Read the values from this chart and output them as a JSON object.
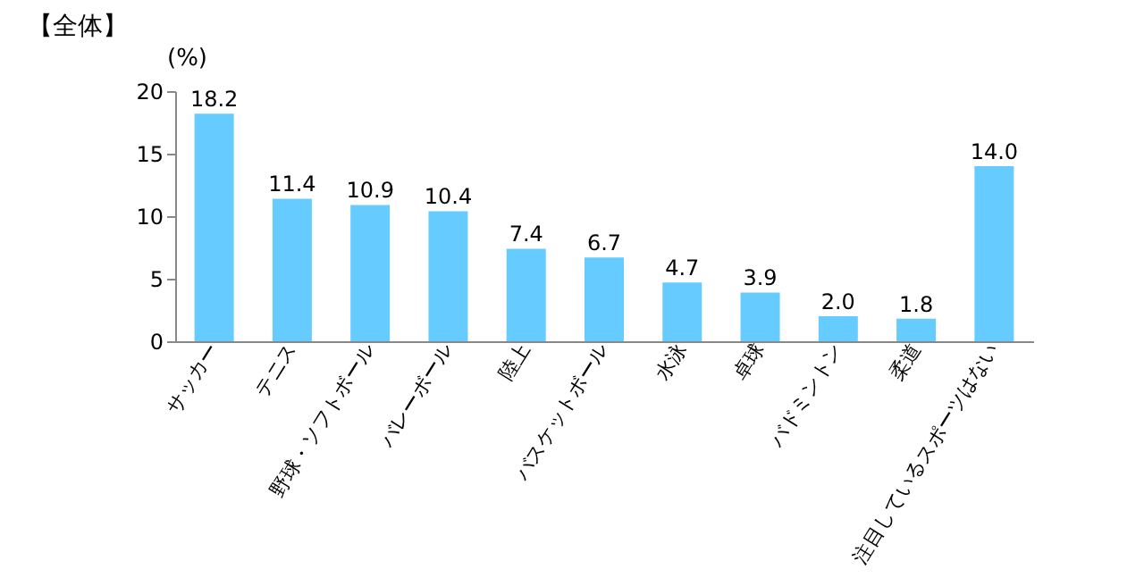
{
  "chart_data": {
    "type": "bar",
    "title": "【全体】",
    "ylabel": "(%)",
    "categories": [
      "サッカー",
      "テニス",
      "野球・ソフトボール",
      "バレーボール",
      "陸上",
      "バスケットボール",
      "水泳",
      "卓球",
      "バドミントン",
      "柔道",
      "注目しているスポーツはない"
    ],
    "values": [
      18.2,
      11.4,
      10.9,
      10.4,
      7.4,
      6.7,
      4.7,
      3.9,
      2.0,
      1.8,
      14.0
    ],
    "value_labels": [
      "18.2",
      "11.4",
      "10.9",
      "10.4",
      "7.4",
      "6.7",
      "4.7",
      "3.9",
      "2.0",
      "1.8",
      "14.0"
    ],
    "color": "#66ccff",
    "ylim": [
      0,
      20
    ],
    "yticks": [
      0,
      5,
      10,
      15,
      20
    ],
    "grid": false
  }
}
